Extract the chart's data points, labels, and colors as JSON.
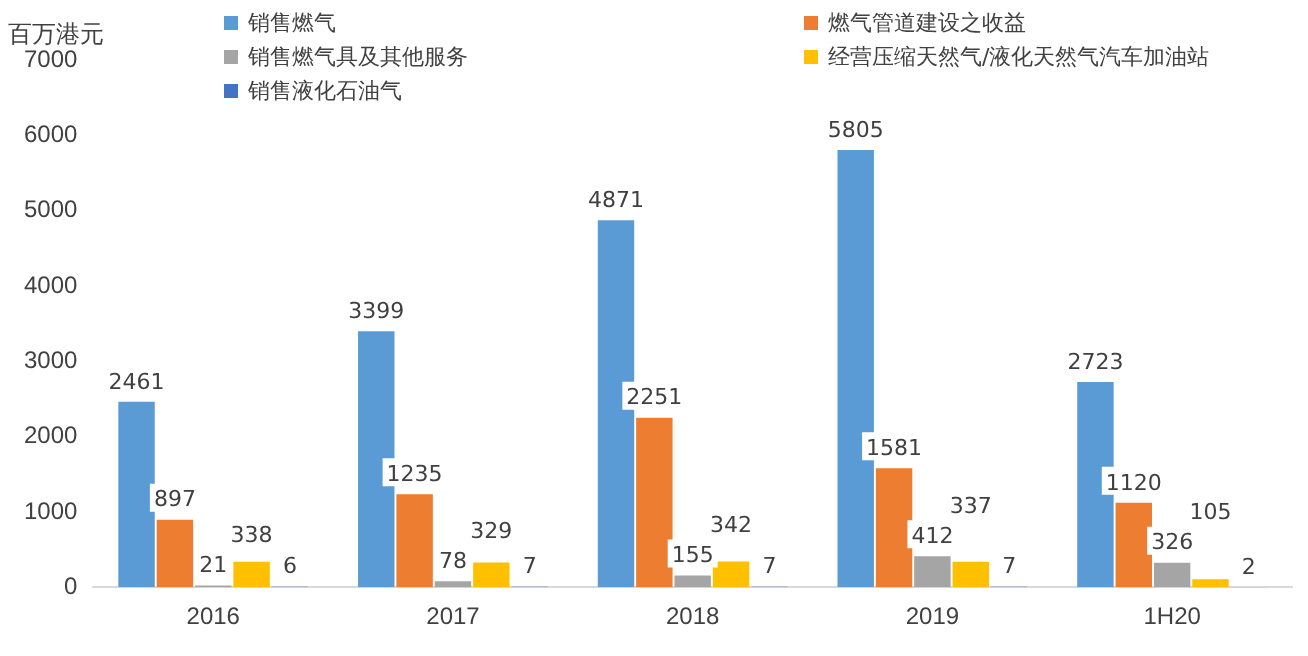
{
  "chart_data": {
    "type": "bar",
    "ylabel": "百万港元",
    "categories": [
      "2016",
      "2017",
      "2018",
      "2019",
      "1H20"
    ],
    "series": [
      {
        "name": "销售燃气",
        "color": "#5b9bd5",
        "values": [
          2461,
          3399,
          4871,
          5805,
          2723
        ]
      },
      {
        "name": "燃气管道建设之收益",
        "color": "#ed7d31",
        "values": [
          897,
          1235,
          2251,
          1581,
          1120
        ]
      },
      {
        "name": "销售燃气具及其他服务",
        "color": "#a5a5a5",
        "values": [
          21,
          78,
          155,
          412,
          326
        ]
      },
      {
        "name": "经营压缩天然气/液化天然气汽车加油站",
        "color": "#ffc000",
        "values": [
          338,
          329,
          342,
          337,
          105
        ]
      },
      {
        "name": "销售液化石油气",
        "color": "#4472c4",
        "values": [
          6,
          7,
          7,
          7,
          2
        ]
      }
    ],
    "ylim": [
      0,
      7000
    ],
    "yticks": [
      0,
      1000,
      2000,
      3000,
      4000,
      5000,
      6000,
      7000
    ],
    "grid": false,
    "legend": "top",
    "data_labels": true
  }
}
